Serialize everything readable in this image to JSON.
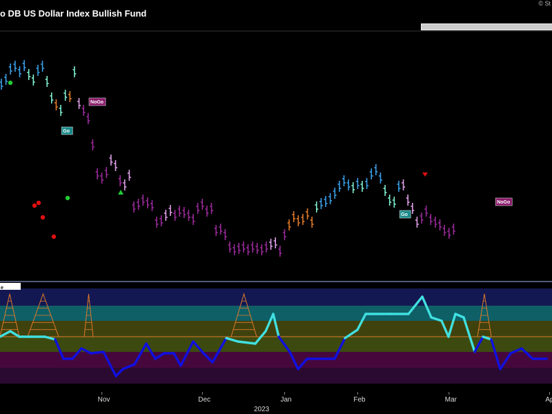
{
  "header": {
    "title": "o DB US Dollar Index Bullish Fund",
    "copyright": "© St"
  },
  "colors": {
    "background": "#000000",
    "strong_uptrend": "#3aa0e8",
    "weak_uptrend": "#7ff0d0",
    "neutral": "#e07a2a",
    "weak_downtrend": "#e0a0e8",
    "strong_downtrend": "#9a2a9a",
    "go_badge": "#1a8a8a",
    "nogo_badge": "#8a1a6a",
    "oscillator_up": "#40e0e0",
    "oscillator_down": "#1010e0",
    "zero_line": "#e07a2a"
  },
  "chart_data": [
    {
      "type": "ohlc",
      "title": "",
      "series": [
        {
          "name": "",
          "values": [
            {
              "i": 0,
              "y": 122,
              "c": "strong_uptrend"
            },
            {
              "i": 1,
              "y": 115,
              "c": "strong_uptrend"
            },
            {
              "i": 2,
              "y": 100,
              "c": "strong_uptrend"
            },
            {
              "i": 3,
              "y": 96,
              "c": "strong_uptrend"
            },
            {
              "i": 4,
              "y": 104,
              "c": "strong_uptrend"
            },
            {
              "i": 5,
              "y": 95,
              "c": "strong_uptrend"
            },
            {
              "i": 6,
              "y": 108,
              "c": "weak_uptrend"
            },
            {
              "i": 7,
              "y": 116,
              "c": "weak_uptrend"
            },
            {
              "i": 8,
              "y": 102,
              "c": "strong_uptrend"
            },
            {
              "i": 9,
              "y": 96,
              "c": "strong_uptrend"
            },
            {
              "i": 10,
              "y": 118,
              "c": "weak_uptrend"
            },
            {
              "i": 11,
              "y": 142,
              "c": "weak_uptrend"
            },
            {
              "i": 12,
              "y": 152,
              "c": "neutral"
            },
            {
              "i": 13,
              "y": 160,
              "c": "weak_uptrend"
            },
            {
              "i": 14,
              "y": 138,
              "c": "weak_uptrend"
            },
            {
              "i": 15,
              "y": 140,
              "c": "neutral"
            },
            {
              "i": 16,
              "y": 104,
              "c": "weak_uptrend"
            },
            {
              "i": 17,
              "y": 150,
              "c": "weak_downtrend"
            },
            {
              "i": 18,
              "y": 160,
              "c": "strong_downtrend"
            },
            {
              "i": 19,
              "y": 172,
              "c": "strong_downtrend"
            },
            {
              "i": 20,
              "y": 210,
              "c": "strong_downtrend"
            },
            {
              "i": 21,
              "y": 252,
              "c": "strong_downtrend"
            },
            {
              "i": 22,
              "y": 258,
              "c": "strong_downtrend"
            },
            {
              "i": 23,
              "y": 250,
              "c": "strong_downtrend"
            },
            {
              "i": 24,
              "y": 232,
              "c": "weak_downtrend"
            },
            {
              "i": 25,
              "y": 240,
              "c": "weak_downtrend"
            },
            {
              "i": 26,
              "y": 262,
              "c": "strong_downtrend"
            },
            {
              "i": 27,
              "y": 268,
              "c": "weak_downtrend"
            },
            {
              "i": 28,
              "y": 254,
              "c": "weak_downtrend"
            },
            {
              "i": 29,
              "y": 300,
              "c": "strong_downtrend"
            },
            {
              "i": 30,
              "y": 296,
              "c": "strong_downtrend"
            },
            {
              "i": 31,
              "y": 290,
              "c": "strong_downtrend"
            },
            {
              "i": 32,
              "y": 294,
              "c": "strong_downtrend"
            },
            {
              "i": 33,
              "y": 298,
              "c": "strong_downtrend"
            },
            {
              "i": 34,
              "y": 322,
              "c": "strong_downtrend"
            },
            {
              "i": 35,
              "y": 320,
              "c": "strong_downtrend"
            },
            {
              "i": 36,
              "y": 312,
              "c": "weak_downtrend"
            },
            {
              "i": 37,
              "y": 305,
              "c": "weak_downtrend"
            },
            {
              "i": 38,
              "y": 312,
              "c": "strong_downtrend"
            },
            {
              "i": 39,
              "y": 306,
              "c": "strong_downtrend"
            },
            {
              "i": 40,
              "y": 308,
              "c": "strong_downtrend"
            },
            {
              "i": 41,
              "y": 312,
              "c": "strong_downtrend"
            },
            {
              "i": 42,
              "y": 318,
              "c": "strong_downtrend"
            },
            {
              "i": 43,
              "y": 302,
              "c": "strong_downtrend"
            },
            {
              "i": 44,
              "y": 296,
              "c": "strong_downtrend"
            },
            {
              "i": 45,
              "y": 306,
              "c": "strong_downtrend"
            },
            {
              "i": 46,
              "y": 302,
              "c": "strong_downtrend"
            },
            {
              "i": 47,
              "y": 334,
              "c": "strong_downtrend"
            },
            {
              "i": 48,
              "y": 332,
              "c": "strong_downtrend"
            },
            {
              "i": 49,
              "y": 340,
              "c": "strong_downtrend"
            },
            {
              "i": 50,
              "y": 358,
              "c": "strong_downtrend"
            },
            {
              "i": 51,
              "y": 362,
              "c": "strong_downtrend"
            },
            {
              "i": 52,
              "y": 360,
              "c": "strong_downtrend"
            },
            {
              "i": 53,
              "y": 358,
              "c": "strong_downtrend"
            },
            {
              "i": 54,
              "y": 362,
              "c": "strong_downtrend"
            },
            {
              "i": 55,
              "y": 358,
              "c": "strong_downtrend"
            },
            {
              "i": 56,
              "y": 360,
              "c": "strong_downtrend"
            },
            {
              "i": 57,
              "y": 362,
              "c": "strong_downtrend"
            },
            {
              "i": 58,
              "y": 358,
              "c": "strong_downtrend"
            },
            {
              "i": 59,
              "y": 354,
              "c": "weak_downtrend"
            },
            {
              "i": 60,
              "y": 352,
              "c": "weak_downtrend"
            },
            {
              "i": 61,
              "y": 364,
              "c": "strong_downtrend"
            },
            {
              "i": 62,
              "y": 340,
              "c": "strong_downtrend"
            },
            {
              "i": 63,
              "y": 326,
              "c": "neutral"
            },
            {
              "i": 64,
              "y": 314,
              "c": "neutral"
            },
            {
              "i": 65,
              "y": 320,
              "c": "neutral"
            },
            {
              "i": 66,
              "y": 318,
              "c": "neutral"
            },
            {
              "i": 67,
              "y": 310,
              "c": "neutral"
            },
            {
              "i": 68,
              "y": 322,
              "c": "neutral"
            },
            {
              "i": 69,
              "y": 300,
              "c": "weak_uptrend"
            },
            {
              "i": 70,
              "y": 295,
              "c": "strong_uptrend"
            },
            {
              "i": 71,
              "y": 292,
              "c": "strong_uptrend"
            },
            {
              "i": 72,
              "y": 288,
              "c": "strong_uptrend"
            },
            {
              "i": 73,
              "y": 280,
              "c": "strong_uptrend"
            },
            {
              "i": 74,
              "y": 270,
              "c": "strong_uptrend"
            },
            {
              "i": 75,
              "y": 262,
              "c": "strong_uptrend"
            },
            {
              "i": 76,
              "y": 268,
              "c": "strong_uptrend"
            },
            {
              "i": 77,
              "y": 272,
              "c": "weak_uptrend"
            },
            {
              "i": 78,
              "y": 266,
              "c": "strong_uptrend"
            },
            {
              "i": 79,
              "y": 270,
              "c": "weak_uptrend"
            },
            {
              "i": 80,
              "y": 266,
              "c": "strong_uptrend"
            },
            {
              "i": 81,
              "y": 252,
              "c": "strong_uptrend"
            },
            {
              "i": 82,
              "y": 246,
              "c": "strong_uptrend"
            },
            {
              "i": 83,
              "y": 258,
              "c": "strong_uptrend"
            },
            {
              "i": 84,
              "y": 276,
              "c": "weak_uptrend"
            },
            {
              "i": 85,
              "y": 290,
              "c": "weak_uptrend"
            },
            {
              "i": 86,
              "y": 293,
              "c": "weak_uptrend"
            },
            {
              "i": 87,
              "y": 270,
              "c": "strong_uptrend"
            },
            {
              "i": 88,
              "y": 268,
              "c": "weak_downtrend"
            },
            {
              "i": 89,
              "y": 290,
              "c": "weak_downtrend"
            },
            {
              "i": 90,
              "y": 302,
              "c": "weak_downtrend"
            },
            {
              "i": 91,
              "y": 322,
              "c": "weak_downtrend"
            },
            {
              "i": 92,
              "y": 316,
              "c": "strong_downtrend"
            },
            {
              "i": 93,
              "y": 306,
              "c": "strong_downtrend"
            },
            {
              "i": 94,
              "y": 318,
              "c": "strong_downtrend"
            },
            {
              "i": 95,
              "y": 322,
              "c": "strong_downtrend"
            },
            {
              "i": 96,
              "y": 326,
              "c": "strong_downtrend"
            },
            {
              "i": 97,
              "y": 334,
              "c": "strong_downtrend"
            },
            {
              "i": 98,
              "y": 338,
              "c": "strong_downtrend"
            },
            {
              "i": 99,
              "y": 332,
              "c": "strong_downtrend"
            }
          ]
        }
      ],
      "annotations": [
        {
          "label": "Go",
          "i": 15,
          "y": 190,
          "kind": "go"
        },
        {
          "label": "NoGo",
          "i": 21,
          "y": 148,
          "kind": "nogo"
        },
        {
          "label": "Go",
          "i": 89,
          "y": 311,
          "kind": "go"
        },
        {
          "label": "NoGo",
          "i": 110,
          "y": 293,
          "kind": "nogo"
        }
      ]
    },
    {
      "type": "line",
      "title": "",
      "series": [
        {
          "name": "",
          "values": [
            {
              "x": 0,
              "y": 488
            },
            {
              "x": 15,
              "y": 480
            },
            {
              "x": 28,
              "y": 488
            },
            {
              "x": 45,
              "y": 488
            },
            {
              "x": 65,
              "y": 488
            },
            {
              "x": 80,
              "y": 492
            },
            {
              "x": 92,
              "y": 520
            },
            {
              "x": 105,
              "y": 520
            },
            {
              "x": 118,
              "y": 505
            },
            {
              "x": 132,
              "y": 512
            },
            {
              "x": 150,
              "y": 510
            },
            {
              "x": 168,
              "y": 545
            },
            {
              "x": 178,
              "y": 535
            },
            {
              "x": 195,
              "y": 528
            },
            {
              "x": 212,
              "y": 498
            },
            {
              "x": 225,
              "y": 520
            },
            {
              "x": 238,
              "y": 512
            },
            {
              "x": 252,
              "y": 512
            },
            {
              "x": 262,
              "y": 530
            },
            {
              "x": 280,
              "y": 495
            },
            {
              "x": 295,
              "y": 512
            },
            {
              "x": 308,
              "y": 525
            },
            {
              "x": 328,
              "y": 490
            },
            {
              "x": 345,
              "y": 495
            },
            {
              "x": 370,
              "y": 498
            },
            {
              "x": 385,
              "y": 480
            },
            {
              "x": 396,
              "y": 455
            },
            {
              "x": 404,
              "y": 488
            },
            {
              "x": 420,
              "y": 510
            },
            {
              "x": 432,
              "y": 535
            },
            {
              "x": 445,
              "y": 520
            },
            {
              "x": 485,
              "y": 520
            },
            {
              "x": 500,
              "y": 490
            },
            {
              "x": 518,
              "y": 478
            },
            {
              "x": 530,
              "y": 455
            },
            {
              "x": 545,
              "y": 455
            },
            {
              "x": 565,
              "y": 455
            },
            {
              "x": 592,
              "y": 455
            },
            {
              "x": 612,
              "y": 430
            },
            {
              "x": 625,
              "y": 460
            },
            {
              "x": 640,
              "y": 465
            },
            {
              "x": 650,
              "y": 488
            },
            {
              "x": 660,
              "y": 455
            },
            {
              "x": 672,
              "y": 460
            },
            {
              "x": 688,
              "y": 510
            },
            {
              "x": 700,
              "y": 488
            },
            {
              "x": 712,
              "y": 492
            },
            {
              "x": 725,
              "y": 535
            },
            {
              "x": 740,
              "y": 512
            },
            {
              "x": 756,
              "y": 505
            },
            {
              "x": 772,
              "y": 520
            },
            {
              "x": 792,
              "y": 520
            }
          ]
        }
      ]
    }
  ],
  "x_axis": {
    "months": [
      {
        "label": "Nov",
        "i": 22
      },
      {
        "label": "Dec",
        "i": 44
      },
      {
        "label": "Jan",
        "i": 62
      },
      {
        "label": "Feb",
        "i": 78
      },
      {
        "label": "Mar",
        "i": 98
      },
      {
        "label": "Apr",
        "i": 120
      }
    ],
    "year_label": "2023"
  },
  "oscillator_panel": {
    "badge": "e"
  }
}
